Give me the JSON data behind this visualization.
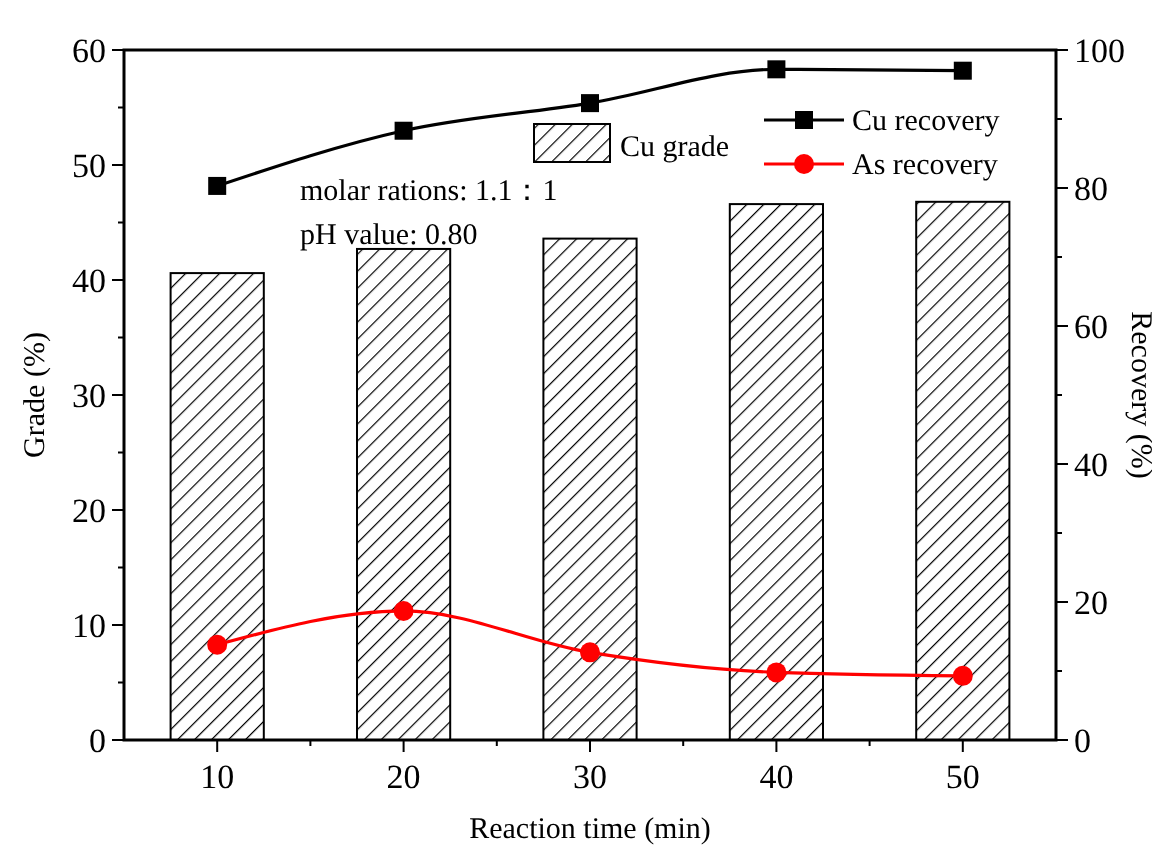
{
  "chart_data": {
    "type": "bar",
    "xlabel": "Reaction time (min)",
    "ylabel": "Grade (%)",
    "y2label": "Recovery (%)",
    "x": [
      10,
      20,
      30,
      40,
      50
    ],
    "xlim": [
      5,
      55
    ],
    "xticks": [
      10,
      {
        "value": 15,
        "label": null
      },
      20,
      {
        "value": 25,
        "label": null
      },
      30,
      {
        "value": 35,
        "label": null
      },
      40,
      {
        "value": 45,
        "label": null
      },
      50
    ],
    "ylim": [
      0,
      60
    ],
    "yticks": [
      0,
      {
        "value": 5,
        "label": null
      },
      10,
      {
        "value": 15,
        "label": null
      },
      20,
      {
        "value": 25,
        "label": null
      },
      30,
      {
        "value": 35,
        "label": null
      },
      40,
      {
        "value": 45,
        "label": null
      },
      50,
      {
        "value": 55,
        "label": null
      },
      60
    ],
    "y2lim": [
      0,
      100
    ],
    "y2ticks": [
      0,
      {
        "value": 10,
        "label": null
      },
      20,
      {
        "value": 30,
        "label": null
      },
      40,
      {
        "value": 50,
        "label": null
      },
      60,
      {
        "value": 70,
        "label": null
      },
      80,
      {
        "value": 90,
        "label": null
      },
      100
    ],
    "series": [
      {
        "name": "Cu grade",
        "color": "#000000",
        "values": [
          40.6,
          42.7,
          43.6,
          46.6,
          46.8
        ]
      },
      {
        "type": "line",
        "name": "Cu recovery",
        "color": "#000000",
        "axis": "y2",
        "marker": "square",
        "values": [
          80.3,
          88.3,
          92.3,
          97.2,
          97.0
        ]
      },
      {
        "type": "line",
        "name": "As recovery",
        "color": "#ff0000",
        "axis": "y2",
        "marker": "circle",
        "values": [
          13.8,
          18.7,
          12.7,
          9.8,
          9.3
        ]
      }
    ],
    "annotations": [
      "molar rations: 1.1：1",
      "pH value: 0.80"
    ],
    "legend": "top right",
    "grid": false
  }
}
